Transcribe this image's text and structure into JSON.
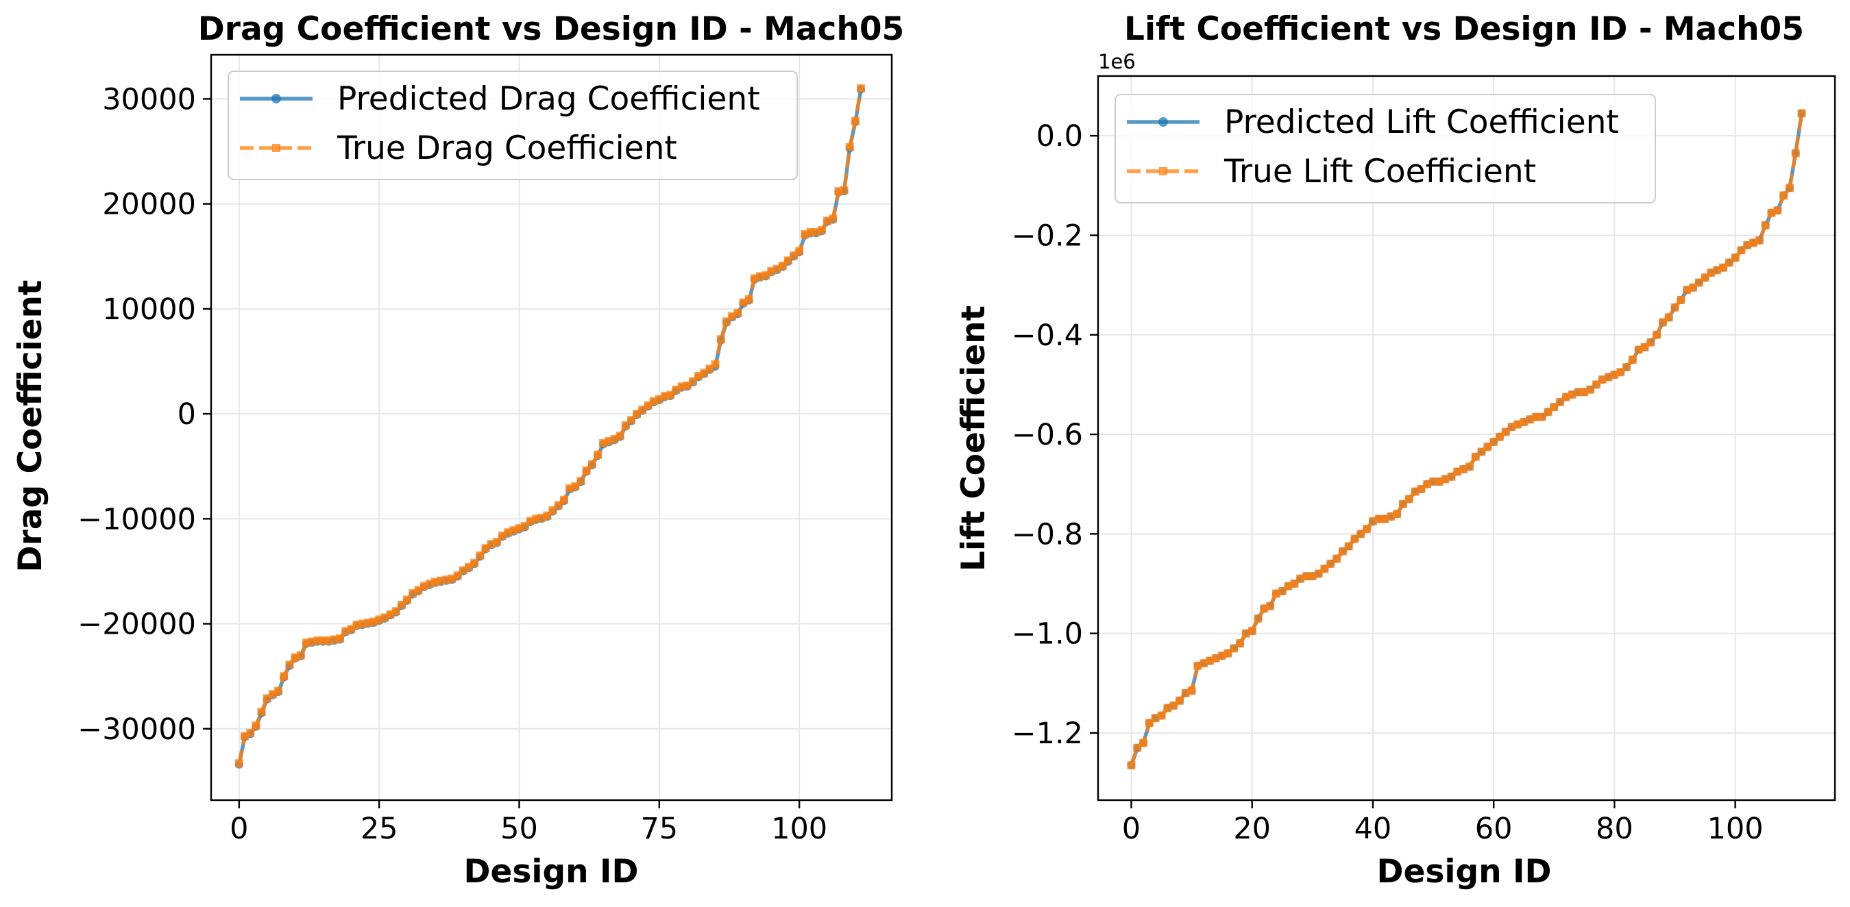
{
  "colors": {
    "predicted": "#1f77b4",
    "true": "#ff7f0e"
  },
  "chart_data": [
    {
      "type": "line",
      "title": "Drag Coefficient vs Design ID - Mach05",
      "xlabel": "Design ID",
      "ylabel": "Drag Coefficient",
      "xlim": [
        -5,
        116.5
      ],
      "ylim": [
        -36800,
        34200
      ],
      "xticks": [
        0,
        25,
        50,
        75,
        100
      ],
      "xtick_labels": [
        "0",
        "25",
        "50",
        "75",
        "100"
      ],
      "yticks": [
        -30000,
        -20000,
        -10000,
        0,
        10000,
        20000,
        30000
      ],
      "ytick_labels": [
        "−30000",
        "−20000",
        "−10000",
        "0",
        "10000",
        "20000",
        "30000"
      ],
      "offset_text": "",
      "legend": {
        "location": "upper left",
        "entries": [
          "Predicted Drag Coefficient",
          "True Drag Coefficient"
        ]
      },
      "grid": true,
      "series": [
        {
          "name": "Predicted Drag Coefficient",
          "style": "solid-circle",
          "x": [
            0,
            1,
            2,
            3,
            4,
            5,
            6,
            7,
            8,
            9,
            10,
            11,
            12,
            13,
            14,
            15,
            16,
            17,
            18,
            19,
            20,
            21,
            22,
            23,
            24,
            25,
            26,
            27,
            28,
            29,
            30,
            31,
            32,
            33,
            34,
            35,
            36,
            37,
            38,
            39,
            40,
            41,
            42,
            43,
            44,
            45,
            46,
            47,
            48,
            49,
            50,
            51,
            52,
            53,
            54,
            55,
            56,
            57,
            58,
            59,
            60,
            61,
            62,
            63,
            64,
            65,
            66,
            67,
            68,
            69,
            70,
            71,
            72,
            73,
            74,
            75,
            76,
            77,
            78,
            79,
            80,
            81,
            82,
            83,
            84,
            85,
            86,
            87,
            88,
            89,
            90,
            91,
            92,
            93,
            94,
            95,
            96,
            97,
            98,
            99,
            100,
            101,
            102,
            103,
            104,
            105,
            106,
            107,
            108,
            109,
            110,
            111
          ],
          "y": [
            -33400,
            -30800,
            -30500,
            -29800,
            -28500,
            -27200,
            -26800,
            -26500,
            -25100,
            -24000,
            -23300,
            -23100,
            -21900,
            -21800,
            -21700,
            -21700,
            -21700,
            -21600,
            -21500,
            -20800,
            -20600,
            -20200,
            -20100,
            -20000,
            -19900,
            -19700,
            -19500,
            -19200,
            -18900,
            -18300,
            -17800,
            -17200,
            -16900,
            -16500,
            -16300,
            -16100,
            -16000,
            -15900,
            -15800,
            -15500,
            -15000,
            -14700,
            -14300,
            -13600,
            -12900,
            -12500,
            -12300,
            -11700,
            -11400,
            -11200,
            -11000,
            -10800,
            -10300,
            -10100,
            -10000,
            -9800,
            -9300,
            -8800,
            -8300,
            -7200,
            -7000,
            -6500,
            -5500,
            -4900,
            -4000,
            -2900,
            -2700,
            -2500,
            -2200,
            -1200,
            -700,
            -100,
            300,
            700,
            1100,
            1300,
            1600,
            1700,
            2200,
            2500,
            2600,
            3000,
            3500,
            3800,
            4200,
            4500,
            7000,
            8700,
            9200,
            9500,
            10500,
            10800,
            12800,
            13000,
            13100,
            13500,
            13700,
            14000,
            14500,
            15000,
            15400,
            17000,
            17200,
            17200,
            17400,
            18300,
            18500,
            21100,
            21200,
            25300,
            27800,
            30900
          ]
        },
        {
          "name": "True Drag Coefficient",
          "style": "dashed-square",
          "x": [
            0,
            1,
            2,
            3,
            4,
            5,
            6,
            7,
            8,
            9,
            10,
            11,
            12,
            13,
            14,
            15,
            16,
            17,
            18,
            19,
            20,
            21,
            22,
            23,
            24,
            25,
            26,
            27,
            28,
            29,
            30,
            31,
            32,
            33,
            34,
            35,
            36,
            37,
            38,
            39,
            40,
            41,
            42,
            43,
            44,
            45,
            46,
            47,
            48,
            49,
            50,
            51,
            52,
            53,
            54,
            55,
            56,
            57,
            58,
            59,
            60,
            61,
            62,
            63,
            64,
            65,
            66,
            67,
            68,
            69,
            70,
            71,
            72,
            73,
            74,
            75,
            76,
            77,
            78,
            79,
            80,
            81,
            82,
            83,
            84,
            85,
            86,
            87,
            88,
            89,
            90,
            91,
            92,
            93,
            94,
            95,
            96,
            97,
            98,
            99,
            100,
            101,
            102,
            103,
            104,
            105,
            106,
            107,
            108,
            109,
            110,
            111
          ],
          "y": [
            -33300,
            -30700,
            -30400,
            -29700,
            -28400,
            -27100,
            -26700,
            -26400,
            -25000,
            -23900,
            -23200,
            -23000,
            -21800,
            -21700,
            -21600,
            -21600,
            -21600,
            -21500,
            -21400,
            -20700,
            -20500,
            -20100,
            -20000,
            -19900,
            -19800,
            -19600,
            -19400,
            -19100,
            -18800,
            -18200,
            -17700,
            -17100,
            -16800,
            -16400,
            -16200,
            -16000,
            -15900,
            -15800,
            -15700,
            -15400,
            -14900,
            -14600,
            -14200,
            -13500,
            -12800,
            -12400,
            -12200,
            -11600,
            -11300,
            -11100,
            -10900,
            -10700,
            -10200,
            -10000,
            -9900,
            -9700,
            -9200,
            -8700,
            -8200,
            -7100,
            -6900,
            -6400,
            -5400,
            -4800,
            -3900,
            -2800,
            -2600,
            -2400,
            -2100,
            -1100,
            -600,
            0,
            400,
            800,
            1200,
            1400,
            1700,
            1800,
            2300,
            2600,
            2700,
            3100,
            3600,
            3900,
            4300,
            4700,
            7100,
            8800,
            9300,
            9600,
            10600,
            10900,
            12900,
            13100,
            13200,
            13600,
            13800,
            14100,
            14600,
            15100,
            15500,
            17100,
            17300,
            17300,
            17500,
            18400,
            18600,
            21200,
            21300,
            25400,
            27900,
            31000
          ]
        }
      ]
    },
    {
      "type": "line",
      "title": "Lift Coefficient vs Design ID - Mach05",
      "xlabel": "Design ID",
      "ylabel": "Lift Coefficient",
      "xlim": [
        -5.5,
        116.5
      ],
      "ylim": [
        -1.335,
        0.12
      ],
      "xticks": [
        0,
        20,
        40,
        60,
        80,
        100
      ],
      "xtick_labels": [
        "0",
        "20",
        "40",
        "60",
        "80",
        "100"
      ],
      "yticks": [
        0,
        -0.2,
        -0.4,
        -0.6,
        -0.8,
        -1.0,
        -1.2
      ],
      "ytick_labels": [
        "0.0",
        "−0.2",
        "−0.4",
        "−0.6",
        "−0.8",
        "−1.0",
        "−1.2"
      ],
      "offset_text": "1e6",
      "legend": {
        "location": "upper left",
        "entries": [
          "Predicted Lift Coefficient",
          "True Lift Coefficient"
        ]
      },
      "grid": true,
      "series": [
        {
          "name": "Predicted Lift Coefficient",
          "style": "solid-circle",
          "x": [
            0,
            1,
            2,
            3,
            4,
            5,
            6,
            7,
            8,
            9,
            10,
            11,
            12,
            13,
            14,
            15,
            16,
            17,
            18,
            19,
            20,
            21,
            22,
            23,
            24,
            25,
            26,
            27,
            28,
            29,
            30,
            31,
            32,
            33,
            34,
            35,
            36,
            37,
            38,
            39,
            40,
            41,
            42,
            43,
            44,
            45,
            46,
            47,
            48,
            49,
            50,
            51,
            52,
            53,
            54,
            55,
            56,
            57,
            58,
            59,
            60,
            61,
            62,
            63,
            64,
            65,
            66,
            67,
            68,
            69,
            70,
            71,
            72,
            73,
            74,
            75,
            76,
            77,
            78,
            79,
            80,
            81,
            82,
            83,
            84,
            85,
            86,
            87,
            88,
            89,
            90,
            91,
            92,
            93,
            94,
            95,
            96,
            97,
            98,
            99,
            100,
            101,
            102,
            103,
            104,
            105,
            106,
            107,
            108,
            109,
            110,
            111
          ],
          "y": [
            -1.265,
            -1.23,
            -1.22,
            -1.18,
            -1.17,
            -1.165,
            -1.15,
            -1.145,
            -1.135,
            -1.12,
            -1.115,
            -1.065,
            -1.06,
            -1.055,
            -1.05,
            -1.045,
            -1.04,
            -1.03,
            -1.02,
            -1.0,
            -0.995,
            -0.97,
            -0.95,
            -0.945,
            -0.92,
            -0.915,
            -0.905,
            -0.9,
            -0.89,
            -0.885,
            -0.885,
            -0.88,
            -0.87,
            -0.86,
            -0.85,
            -0.835,
            -0.825,
            -0.81,
            -0.8,
            -0.79,
            -0.775,
            -0.77,
            -0.77,
            -0.765,
            -0.76,
            -0.74,
            -0.73,
            -0.715,
            -0.71,
            -0.7,
            -0.695,
            -0.695,
            -0.69,
            -0.685,
            -0.675,
            -0.67,
            -0.665,
            -0.645,
            -0.635,
            -0.625,
            -0.615,
            -0.605,
            -0.595,
            -0.585,
            -0.58,
            -0.575,
            -0.57,
            -0.565,
            -0.565,
            -0.555,
            -0.545,
            -0.535,
            -0.525,
            -0.52,
            -0.515,
            -0.515,
            -0.51,
            -0.5,
            -0.49,
            -0.485,
            -0.48,
            -0.475,
            -0.465,
            -0.45,
            -0.43,
            -0.425,
            -0.415,
            -0.4,
            -0.375,
            -0.365,
            -0.345,
            -0.33,
            -0.31,
            -0.305,
            -0.295,
            -0.285,
            -0.275,
            -0.27,
            -0.265,
            -0.255,
            -0.245,
            -0.23,
            -0.22,
            -0.215,
            -0.21,
            -0.18,
            -0.155,
            -0.15,
            -0.12,
            -0.105,
            -0.035,
            0.045
          ]
        },
        {
          "name": "True Lift Coefficient",
          "style": "dashed-square",
          "x": [
            0,
            1,
            2,
            3,
            4,
            5,
            6,
            7,
            8,
            9,
            10,
            11,
            12,
            13,
            14,
            15,
            16,
            17,
            18,
            19,
            20,
            21,
            22,
            23,
            24,
            25,
            26,
            27,
            28,
            29,
            30,
            31,
            32,
            33,
            34,
            35,
            36,
            37,
            38,
            39,
            40,
            41,
            42,
            43,
            44,
            45,
            46,
            47,
            48,
            49,
            50,
            51,
            52,
            53,
            54,
            55,
            56,
            57,
            58,
            59,
            60,
            61,
            62,
            63,
            64,
            65,
            66,
            67,
            68,
            69,
            70,
            71,
            72,
            73,
            74,
            75,
            76,
            77,
            78,
            79,
            80,
            81,
            82,
            83,
            84,
            85,
            86,
            87,
            88,
            89,
            90,
            91,
            92,
            93,
            94,
            95,
            96,
            97,
            98,
            99,
            100,
            101,
            102,
            103,
            104,
            105,
            106,
            107,
            108,
            109,
            110,
            111
          ],
          "y": [
            -1.265,
            -1.23,
            -1.22,
            -1.18,
            -1.17,
            -1.165,
            -1.15,
            -1.145,
            -1.135,
            -1.12,
            -1.115,
            -1.065,
            -1.06,
            -1.055,
            -1.05,
            -1.045,
            -1.04,
            -1.03,
            -1.02,
            -1.0,
            -0.995,
            -0.97,
            -0.95,
            -0.945,
            -0.92,
            -0.915,
            -0.905,
            -0.9,
            -0.89,
            -0.885,
            -0.885,
            -0.88,
            -0.87,
            -0.86,
            -0.85,
            -0.835,
            -0.825,
            -0.81,
            -0.8,
            -0.79,
            -0.775,
            -0.77,
            -0.77,
            -0.765,
            -0.76,
            -0.74,
            -0.73,
            -0.715,
            -0.71,
            -0.7,
            -0.695,
            -0.695,
            -0.69,
            -0.685,
            -0.675,
            -0.67,
            -0.665,
            -0.645,
            -0.635,
            -0.625,
            -0.615,
            -0.605,
            -0.595,
            -0.585,
            -0.58,
            -0.575,
            -0.57,
            -0.565,
            -0.565,
            -0.555,
            -0.545,
            -0.535,
            -0.525,
            -0.52,
            -0.515,
            -0.515,
            -0.51,
            -0.5,
            -0.49,
            -0.485,
            -0.48,
            -0.475,
            -0.465,
            -0.45,
            -0.43,
            -0.425,
            -0.415,
            -0.4,
            -0.375,
            -0.365,
            -0.345,
            -0.33,
            -0.31,
            -0.305,
            -0.295,
            -0.285,
            -0.275,
            -0.27,
            -0.265,
            -0.255,
            -0.245,
            -0.23,
            -0.22,
            -0.215,
            -0.21,
            -0.18,
            -0.155,
            -0.15,
            -0.12,
            -0.105,
            -0.035,
            0.045
          ]
        }
      ]
    }
  ]
}
